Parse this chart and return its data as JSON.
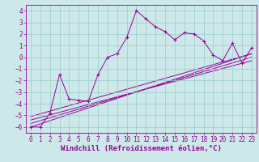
{
  "xlabel": "Windchill (Refroidissement éolien,°C)",
  "bg_color": "#cce8e8",
  "grid_color": "#99cccc",
  "line_color": "#990099",
  "spine_color": "#660066",
  "xlim": [
    -0.5,
    23.5
  ],
  "ylim": [
    -6.5,
    4.5
  ],
  "xticks": [
    0,
    1,
    2,
    3,
    4,
    5,
    6,
    7,
    8,
    9,
    10,
    11,
    12,
    13,
    14,
    15,
    16,
    17,
    18,
    19,
    20,
    21,
    22,
    23
  ],
  "yticks": [
    -6,
    -5,
    -4,
    -3,
    -2,
    -1,
    0,
    1,
    2,
    3,
    4
  ],
  "series1_x": [
    0,
    1,
    2,
    3,
    4,
    5,
    6,
    7,
    8,
    9,
    10,
    11,
    12,
    13,
    14,
    15,
    16,
    17,
    18,
    19,
    20,
    21,
    22,
    23
  ],
  "series1_y": [
    -6.0,
    -6.0,
    -4.8,
    -1.5,
    -3.6,
    -3.7,
    -3.8,
    -1.5,
    0.0,
    0.3,
    1.7,
    4.0,
    3.3,
    2.6,
    2.2,
    1.5,
    2.1,
    2.0,
    1.4,
    0.2,
    -0.3,
    1.2,
    -0.5,
    0.8
  ],
  "line1_x": [
    0,
    23
  ],
  "line1_y": [
    -6.0,
    0.3
  ],
  "line2_x": [
    0,
    23
  ],
  "line2_y": [
    -5.7,
    0.0
  ],
  "line3_x": [
    0,
    23
  ],
  "line3_y": [
    -5.4,
    -0.3
  ],
  "line4_x": [
    0,
    23
  ],
  "line4_y": [
    -5.1,
    0.3
  ],
  "tick_fontsize": 5.5,
  "xlabel_fontsize": 6.5
}
